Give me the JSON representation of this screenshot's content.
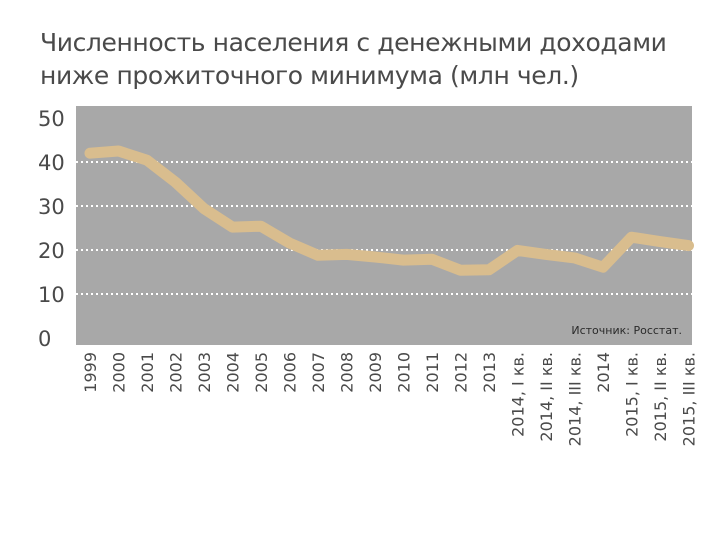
{
  "chart_data": {
    "type": "line",
    "title_lines": [
      "Численность населения с денежными доходами",
      "ниже прожиточного минимума (млн чел.)"
    ],
    "categories": [
      "1999",
      "2000",
      "2001",
      "2002",
      "2003",
      "2004",
      "2005",
      "2006",
      "2007",
      "2008",
      "2009",
      "2010",
      "2011",
      "2012",
      "2013",
      "2014, I кв.",
      "2014, II кв.",
      "2014, III кв.",
      "2014",
      "2015, I кв.",
      "2015, II кв.",
      "2015, III кв."
    ],
    "values": [
      42.0,
      42.5,
      40.4,
      35.4,
      29.4,
      25.2,
      25.4,
      21.6,
      18.8,
      19.0,
      18.4,
      17.7,
      17.9,
      15.4,
      15.5,
      19.9,
      19.0,
      18.2,
      16.1,
      22.9,
      21.9,
      21.0
    ],
    "yticks": [
      "50",
      "40",
      "30",
      "20",
      "10",
      "0"
    ],
    "ylim": [
      0,
      50
    ],
    "source": "Источник: Росстат.",
    "colors": {
      "plot_background": "#a8a8a8",
      "line": "#d9bd8e",
      "grid": "#ffffff",
      "text": "#4a4a4a"
    }
  }
}
